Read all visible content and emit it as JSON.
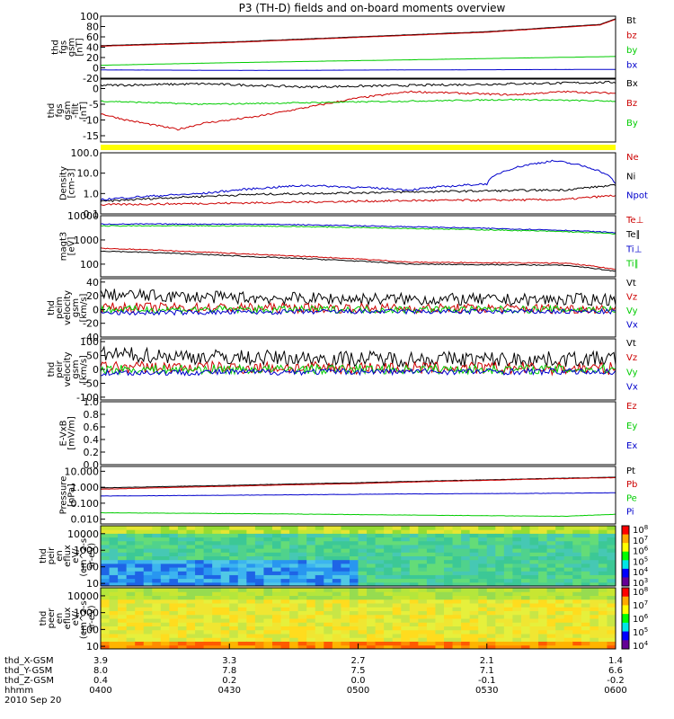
{
  "title": "P3 (TH-D) fields and on-board moments overview",
  "chart_data": [
    {
      "type": "line",
      "panel": "fgs-main",
      "ylabel": [
        "thd",
        "fgs",
        "gsm",
        "[nT]"
      ],
      "ylim": [
        -20,
        100
      ],
      "yticks": [
        "100",
        "80",
        "60",
        "40",
        "20",
        "0",
        "-20"
      ],
      "series": [
        {
          "name": "Bt",
          "color": "#000000",
          "x": [
            0,
            0.25,
            0.5,
            0.75,
            0.97,
            1
          ],
          "y": [
            43,
            50,
            60,
            70,
            84,
            95
          ]
        },
        {
          "name": "bz",
          "color": "#cc0000",
          "x": [
            0,
            0.25,
            0.5,
            0.75,
            0.97,
            1
          ],
          "y": [
            42,
            49,
            59,
            69,
            83,
            94
          ]
        },
        {
          "name": "by",
          "color": "#00cc00",
          "x": [
            0,
            0.25,
            0.5,
            0.75,
            1
          ],
          "y": [
            5,
            10,
            14,
            18,
            22
          ]
        },
        {
          "name": "bx",
          "color": "#0000cc",
          "x": [
            0,
            0.3,
            0.6,
            1
          ],
          "y": [
            -4,
            -5,
            -4,
            -3
          ]
        }
      ]
    },
    {
      "type": "line",
      "panel": "fgs-detail",
      "ylabel": [
        "thd",
        "fgs",
        "gsm",
        "-filt",
        "[nT]"
      ],
      "ylim": [
        -17,
        3
      ],
      "yticks": [
        "0",
        "-5",
        "-10",
        "-15"
      ],
      "series": [
        {
          "name": "Bx",
          "color": "#000000",
          "x": [
            0,
            0.2,
            0.4,
            0.6,
            0.8,
            1
          ],
          "y": [
            1,
            1.5,
            0.5,
            1,
            1.5,
            2
          ]
        },
        {
          "name": "Bz",
          "color": "#cc0000",
          "x": [
            0,
            0.05,
            0.15,
            0.2,
            0.3,
            0.4,
            0.5,
            0.6,
            0.7,
            0.8,
            0.9,
            1
          ],
          "y": [
            -8,
            -10,
            -13,
            -11,
            -9,
            -6,
            -3,
            -1,
            -1.5,
            -2,
            -1,
            -1.5
          ]
        },
        {
          "name": "By",
          "color": "#00cc00",
          "x": [
            0,
            0.2,
            0.4,
            0.6,
            0.8,
            1
          ],
          "y": [
            -4,
            -5,
            -4.5,
            -4,
            -3.5,
            -4
          ]
        }
      ]
    },
    {
      "type": "line",
      "panel": "density",
      "ylabel": [
        "Density",
        "[cm-3]"
      ],
      "scale": "log",
      "ylim": [
        0.1,
        100
      ],
      "yticks": [
        "100.0",
        "10.0",
        "1.0",
        "0.1"
      ],
      "series": [
        {
          "name": "Ne",
          "color": "#cc0000",
          "x": [
            0,
            0.3,
            0.6,
            0.9,
            1
          ],
          "y": [
            0.28,
            0.35,
            0.45,
            0.5,
            0.8
          ]
        },
        {
          "name": "Ni",
          "color": "#000000",
          "x": [
            0,
            0.3,
            0.6,
            0.9,
            1
          ],
          "y": [
            0.4,
            0.9,
            1.2,
            1.5,
            2.5
          ]
        },
        {
          "name": "Npot",
          "color": "#0000cc",
          "x": [
            0,
            0.2,
            0.4,
            0.6,
            0.75,
            0.88,
            1
          ],
          "y": [
            0.5,
            1.0,
            2.5,
            1.5,
            3,
            40,
            3
          ]
        }
      ]
    },
    {
      "type": "line",
      "panel": "temperature",
      "ylabel": [
        "magt3",
        "[eV]"
      ],
      "scale": "log",
      "ylim": [
        30,
        10000
      ],
      "yticks": [
        "10000",
        "1000",
        "100"
      ],
      "series": [
        {
          "name": "Te⊥",
          "color": "#cc0000",
          "x": [
            0,
            0.3,
            0.6,
            0.9,
            1
          ],
          "y": [
            450,
            250,
            120,
            110,
            60
          ]
        },
        {
          "name": "Te∥",
          "color": "#000000",
          "x": [
            0,
            0.3,
            0.6,
            0.9,
            1
          ],
          "y": [
            350,
            200,
            100,
            90,
            50
          ]
        },
        {
          "name": "Ti⊥",
          "color": "#0000cc",
          "x": [
            0,
            0.3,
            0.6,
            0.9,
            1
          ],
          "y": [
            4500,
            4500,
            3500,
            2500,
            2000
          ]
        },
        {
          "name": "Ti∥",
          "color": "#00cc00",
          "x": [
            0,
            0.3,
            0.6,
            0.9,
            1
          ],
          "y": [
            3800,
            3800,
            3000,
            2200,
            1800
          ]
        }
      ]
    },
    {
      "type": "line",
      "panel": "peim-velocity",
      "ylabel": [
        "thd",
        "peim",
        "velocity",
        "gsm",
        "[km/s]"
      ],
      "ylim": [
        -40,
        45
      ],
      "yticks": [
        "40",
        "20",
        "0",
        "-20",
        "-40"
      ],
      "series": [
        {
          "name": "Vt",
          "color": "#000000",
          "x": [
            0,
            0.2,
            0.4,
            0.6,
            0.8,
            1
          ],
          "y": [
            22,
            18,
            16,
            15,
            14,
            15
          ]
        },
        {
          "name": "Vz",
          "color": "#cc0000",
          "x": [
            0,
            0.5,
            1
          ],
          "y": [
            3,
            2,
            1
          ]
        },
        {
          "name": "Vy",
          "color": "#00cc00",
          "x": [
            0,
            0.5,
            1
          ],
          "y": [
            0,
            0,
            0
          ]
        },
        {
          "name": "Vx",
          "color": "#0000cc",
          "x": [
            0,
            0.5,
            1
          ],
          "y": [
            -5,
            -3,
            -3
          ]
        }
      ]
    },
    {
      "type": "line",
      "panel": "peir-velocity",
      "ylabel": [
        "thd",
        "peir",
        "velocity",
        "gsm",
        "[km/s]"
      ],
      "ylim": [
        -110,
        110
      ],
      "yticks": [
        "100",
        "50",
        "0",
        "-50",
        "-100"
      ],
      "series": [
        {
          "name": "Vt",
          "color": "#000000",
          "x": [
            0,
            0.2,
            0.4,
            0.6,
            0.8,
            1
          ],
          "y": [
            55,
            45,
            40,
            38,
            36,
            38
          ]
        },
        {
          "name": "Vz",
          "color": "#cc0000",
          "x": [
            0,
            0.5,
            1
          ],
          "y": [
            8,
            5,
            3
          ]
        },
        {
          "name": "Vy",
          "color": "#00cc00",
          "x": [
            0,
            0.5,
            1
          ],
          "y": [
            0,
            0,
            0
          ]
        },
        {
          "name": "Vx",
          "color": "#0000cc",
          "x": [
            0,
            0.5,
            1
          ],
          "y": [
            -12,
            -8,
            -8
          ]
        }
      ]
    },
    {
      "type": "line",
      "panel": "efield",
      "ylabel": [
        "E-VxB",
        "[mV/m]"
      ],
      "ylim": [
        0,
        1
      ],
      "yticks": [
        "1.0",
        "0.8",
        "0.6",
        "0.4",
        "0.2",
        "0.0"
      ],
      "series": [
        {
          "name": "Ez",
          "color": "#cc0000",
          "x": [],
          "y": []
        },
        {
          "name": "Ey",
          "color": "#00cc00",
          "x": [],
          "y": []
        },
        {
          "name": "Ex",
          "color": "#0000cc",
          "x": [],
          "y": []
        }
      ]
    },
    {
      "type": "line",
      "panel": "pressure",
      "ylabel": [
        "Pressure",
        "[nPa]"
      ],
      "scale": "log",
      "ylim": [
        0.005,
        20
      ],
      "yticks": [
        "10.000",
        "1.000",
        "0.100",
        "0.010"
      ],
      "series": [
        {
          "name": "Pt",
          "color": "#000000",
          "x": [
            0,
            0.25,
            0.5,
            0.75,
            1
          ],
          "y": [
            0.9,
            1.3,
            1.9,
            2.9,
            4.2
          ]
        },
        {
          "name": "Pb",
          "color": "#cc0000",
          "x": [
            0,
            0.25,
            0.5,
            0.75,
            1
          ],
          "y": [
            0.75,
            1.15,
            1.7,
            2.7,
            4.0
          ]
        },
        {
          "name": "Pe",
          "color": "#00cc00",
          "x": [
            0,
            0.3,
            0.6,
            0.9,
            1
          ],
          "y": [
            0.025,
            0.022,
            0.018,
            0.015,
            0.02
          ]
        },
        {
          "name": "Pi",
          "color": "#0000cc",
          "x": [
            0,
            0.3,
            0.6,
            0.9,
            1
          ],
          "y": [
            0.28,
            0.32,
            0.38,
            0.42,
            0.45
          ]
        }
      ]
    },
    {
      "type": "heatmap",
      "panel": "peir-spectrogram",
      "ylabel": [
        "thd",
        "peir",
        "en",
        "eflux",
        "eV/",
        "(cm^2-s-",
        "sr-eV)"
      ],
      "scale": "log",
      "ylim": [
        7,
        30000
      ],
      "yticks": [
        "10000",
        "1000",
        "100",
        "10"
      ],
      "colorbar": {
        "min_exp": 3,
        "max_exp": 8
      }
    },
    {
      "type": "heatmap",
      "panel": "peer-spectrogram",
      "ylabel": [
        "thd",
        "peer",
        "en",
        "eflux",
        "eV/",
        "(cm^2-s-",
        "sr-eV)"
      ],
      "scale": "log",
      "ylim": [
        7,
        30000
      ],
      "yticks": [
        "10000",
        "1000",
        "100",
        "10"
      ],
      "colorbar": {
        "min_exp": 4,
        "max_exp": 8
      }
    }
  ],
  "axis_table": {
    "rows": [
      {
        "label": "thd_X-GSM",
        "values": [
          "3.9",
          "3.3",
          "2.7",
          "2.1",
          "1.4"
        ]
      },
      {
        "label": "thd_Y-GSM",
        "values": [
          "8.0",
          "7.8",
          "7.5",
          "7.1",
          "6.6"
        ]
      },
      {
        "label": "thd_Z-GSM",
        "values": [
          "0.4",
          "0.2",
          "0.0",
          "-0.1",
          "-0.2"
        ]
      },
      {
        "label": "hhmm",
        "values": [
          "0400",
          "0430",
          "0500",
          "0530",
          "0600"
        ]
      }
    ],
    "date": "2010 Sep 20"
  }
}
